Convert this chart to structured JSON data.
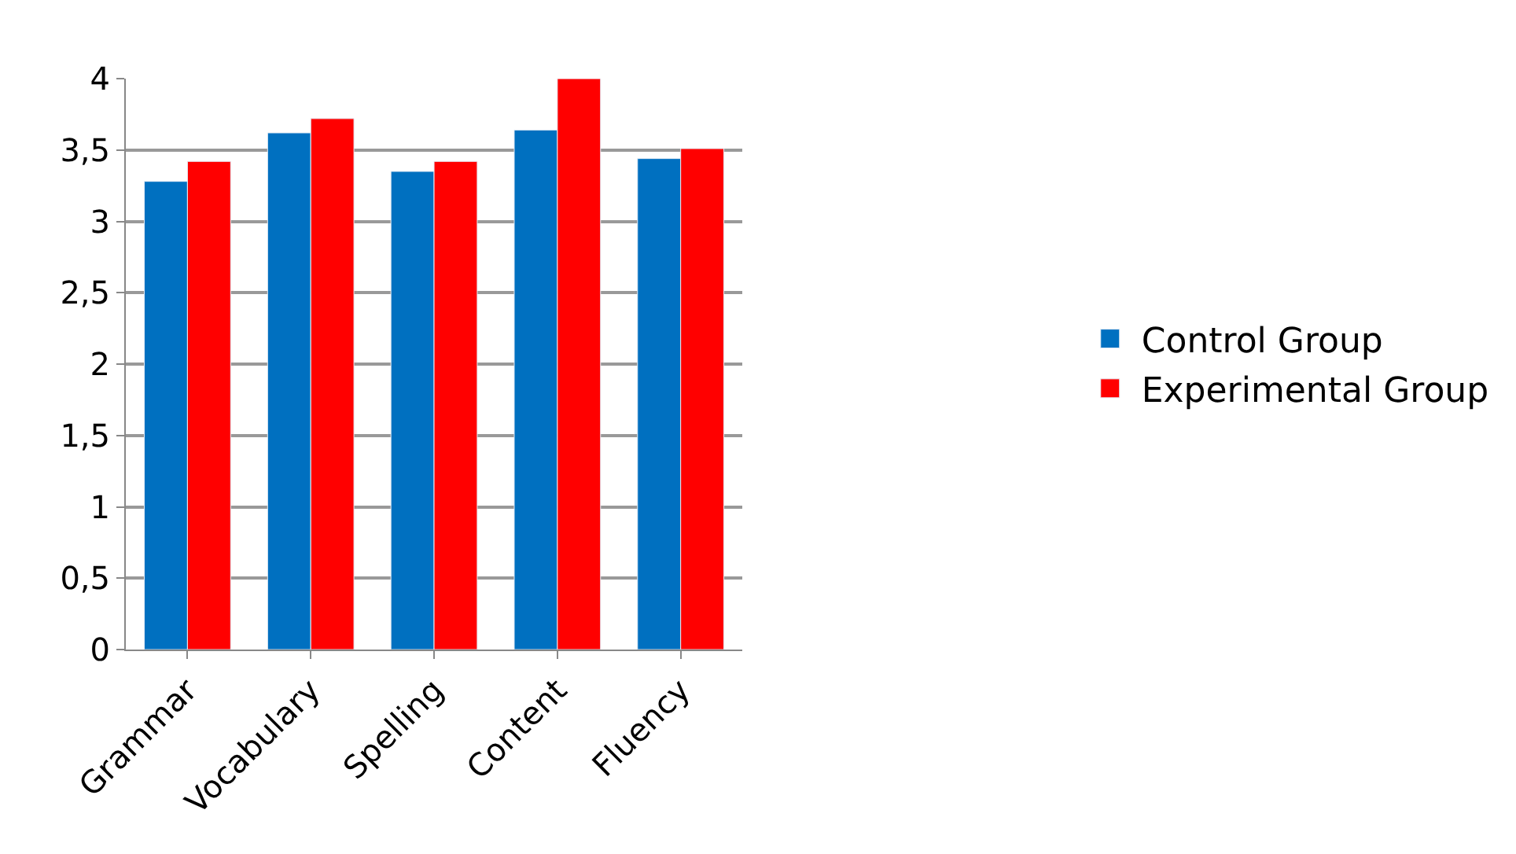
{
  "chart_data": {
    "type": "bar",
    "categories": [
      "Grammar",
      "Vocabulary",
      "Spelling",
      "Content",
      "Fluency"
    ],
    "series": [
      {
        "name": "Control Group",
        "color": "#0070c0",
        "values": [
          3.28,
          3.62,
          3.35,
          3.64,
          3.44
        ]
      },
      {
        "name": "Experimental Group",
        "color": "#ff0000",
        "values": [
          3.42,
          3.72,
          3.42,
          4.0,
          3.51
        ]
      }
    ],
    "ylim": [
      0,
      4
    ],
    "yticks": [
      0,
      {
        "value": 0.5,
        "label": "0,5"
      },
      1,
      {
        "value": 1.5,
        "label": "1,5"
      },
      2,
      {
        "value": 2.5,
        "label": "2,5"
      },
      3,
      {
        "value": 3.5,
        "label": "3,5"
      },
      4
    ],
    "grid": "y",
    "legend": "right"
  }
}
